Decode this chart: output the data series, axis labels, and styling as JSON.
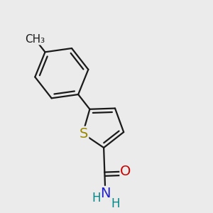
{
  "background_color": "#ebebeb",
  "bond_color": "#1a1a1a",
  "bond_width": 1.6,
  "atom_colors": {
    "S": "#9a8800",
    "O": "#cc0000",
    "N": "#2222cc",
    "H": "#008888",
    "C": "#1a1a1a"
  },
  "font_size_heavy": 14,
  "font_size_H": 12,
  "font_size_methyl": 11
}
